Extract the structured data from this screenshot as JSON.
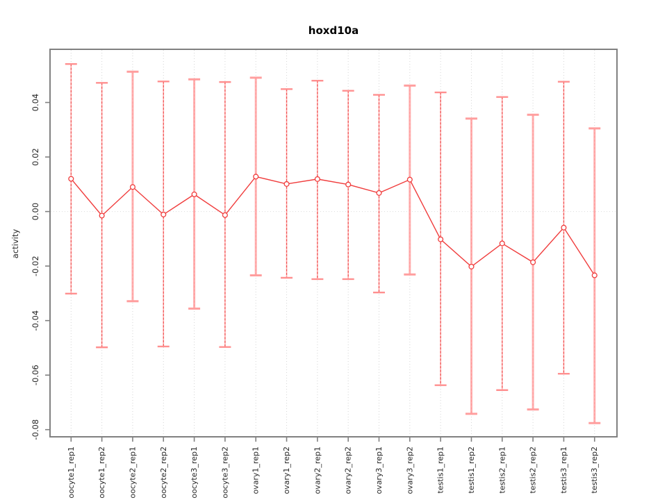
{
  "title": "hoxd10a",
  "ylabel": "activity",
  "xlabel": "",
  "chart_data": {
    "type": "line",
    "title": "hoxd10a",
    "xlabel": "",
    "ylabel": "activity",
    "legend": "none",
    "point_marker": "open-circle",
    "categories": [
      "oocyte1_rep1",
      "oocyte1_rep2",
      "oocyte2_rep1",
      "oocyte2_rep2",
      "oocyte3_rep1",
      "oocyte3_rep2",
      "ovary1_rep1",
      "ovary1_rep2",
      "ovary2_rep1",
      "ovary2_rep2",
      "ovary3_rep1",
      "ovary3_rep2",
      "testis1_rep1",
      "testis1_rep2",
      "testis2_rep1",
      "testis2_rep2",
      "testis3_rep1",
      "testis3_rep2"
    ],
    "series": [
      {
        "name": "mean",
        "values": [
          0.012,
          -0.0015,
          0.009,
          -0.0011,
          0.0063,
          -0.0013,
          0.0128,
          0.0101,
          0.0119,
          0.0099,
          0.0068,
          0.0117,
          -0.0102,
          -0.0202,
          -0.0117,
          -0.0186,
          -0.0059,
          -0.0234
        ]
      }
    ],
    "error_upper": [
      0.0541,
      0.0472,
      0.0513,
      0.0477,
      0.0485,
      0.0475,
      0.0491,
      0.0449,
      0.048,
      0.0443,
      0.0428,
      0.0462,
      0.0437,
      0.0341,
      0.042,
      0.0355,
      0.0476,
      0.0305
    ],
    "error_lower": [
      -0.0301,
      -0.0498,
      -0.0329,
      -0.0495,
      -0.0356,
      -0.0497,
      -0.0234,
      -0.0243,
      -0.0248,
      -0.0248,
      -0.0297,
      -0.0231,
      -0.0637,
      -0.0742,
      -0.0655,
      -0.0726,
      -0.0595,
      -0.0776
    ],
    "error_bar_styles": [
      "dashed",
      "dashed",
      "solid",
      "dashed",
      "solid",
      "dashed",
      "solid",
      "dashed",
      "dashed",
      "dashed",
      "dashed",
      "solid",
      "dashed",
      "solid",
      "dashed",
      "solid",
      "dashed",
      "solid"
    ],
    "ylim": [
      -0.083,
      0.0595
    ],
    "ytick_values": [
      0.04,
      0.02,
      0.0,
      -0.02,
      -0.04,
      -0.06,
      -0.08
    ],
    "ytick_labels": [
      "0.04",
      "0.02",
      "0.00",
      "-0.02",
      "-0.04",
      "-0.06",
      "-0.08"
    ],
    "grid": {
      "vertical": "dotted light-gray line at each category",
      "horizontal": "dotted light-gray line at y=0 only"
    }
  },
  "colors": {
    "series_line": "#f03c3c",
    "point_stroke": "#f03c3c",
    "point_fill": "#ffffff",
    "errorbar_dashed": "#ef4b4b",
    "errorbar_solid_base": "#ffafaf",
    "errorbar_cap": "#ff8f8f",
    "errorbar_cap_solid": "#ff9e9e",
    "gridline": "#d4d4d4",
    "zero_line": "#dcdcdc",
    "plot_border": "#808080",
    "axis_tick": "#808080",
    "tick_text": "#262626",
    "title_text": "#000000",
    "background": "#ffffff"
  }
}
